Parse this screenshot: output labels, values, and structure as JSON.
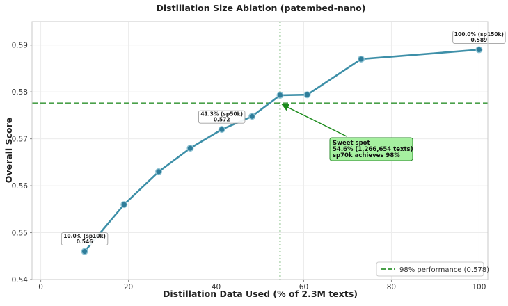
{
  "chart_data": {
    "type": "line",
    "title": "Distillation Size Ablation (patembed-nano)",
    "xlabel": "Distillation Data Used (% of 2.3M texts)",
    "ylabel": "Overall Score",
    "xlim": [
      -2,
      102
    ],
    "ylim": [
      0.54,
      0.595
    ],
    "xticks": [
      0,
      20,
      40,
      60,
      80,
      100
    ],
    "yticks": [
      0.54,
      0.55,
      0.56,
      0.57,
      0.58,
      0.59
    ],
    "ytick_labels": [
      "0.54",
      "0.55",
      "0.56",
      "0.57",
      "0.58",
      "0.59"
    ],
    "grid": true,
    "series": [
      {
        "color": "#3d8fa8",
        "x": [
          10.0,
          19.0,
          26.9,
          34.1,
          41.3,
          48.2,
          54.6,
          60.8,
          73.1,
          100.0
        ],
        "y": [
          0.546,
          0.556,
          0.563,
          0.568,
          0.572,
          0.5748,
          0.5793,
          0.5794,
          0.587,
          0.589
        ]
      }
    ],
    "reference_lines": {
      "horizontal": {
        "y": 0.5776,
        "label": "98% performance (0.578)",
        "color": "#4aa04a"
      },
      "vertical": {
        "x": 54.6,
        "color": "#4aa04a"
      }
    },
    "annotations": [
      {
        "x": 10.0,
        "y": 0.546,
        "line1": "10.0% (sp10k)",
        "line2": "0.546"
      },
      {
        "x": 41.3,
        "y": 0.572,
        "line1": "41.3% (sp50k)",
        "line2": "0.572"
      },
      {
        "x": 100.0,
        "y": 0.589,
        "line1": "100.0% (sp150k)",
        "line2": "0.589"
      }
    ],
    "sweet_spot": {
      "point_x": 54.6,
      "point_y": 0.5776,
      "lines": [
        "Sweet spot",
        "54.6% (1,266,654 texts)",
        "sp70k achieves 98%"
      ],
      "box_color": "#a6f0a0",
      "arrow_color": "#1a8a1a"
    },
    "legend": {
      "placement": "bottom-right"
    }
  }
}
